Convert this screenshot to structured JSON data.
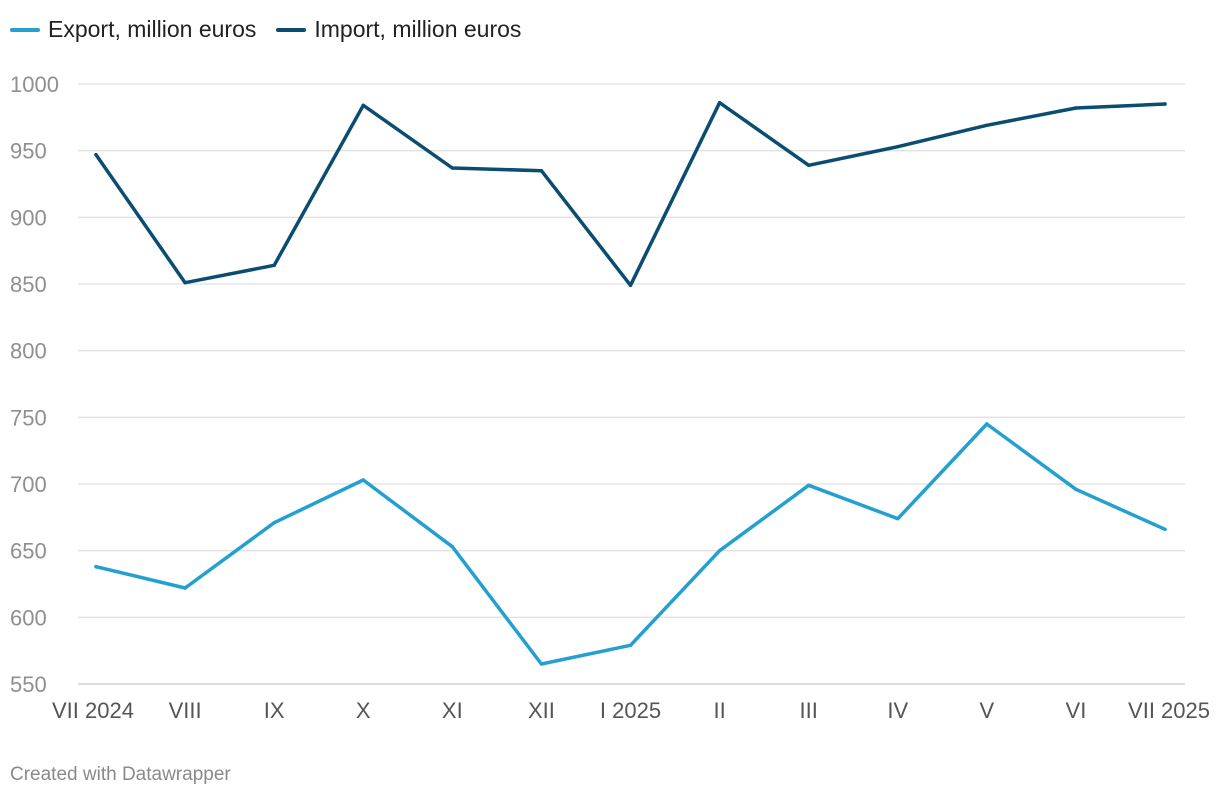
{
  "chart_data": {
    "type": "line",
    "categories": [
      "VII 2024",
      "VIII",
      "IX",
      "X",
      "XI",
      "XII",
      "I 2025",
      "II",
      "III",
      "IV",
      "V",
      "VI",
      "VII 2025"
    ],
    "series": [
      {
        "name": "Export, million euros",
        "color": "#23a0cf",
        "values": [
          638,
          622,
          671,
          703,
          653,
          565,
          579,
          650,
          699,
          674,
          745,
          696,
          666
        ]
      },
      {
        "name": "Import, million euros",
        "color": "#0b4d70",
        "values": [
          947,
          851,
          864,
          984,
          937,
          935,
          849,
          986,
          939,
          953,
          969,
          982,
          985
        ]
      }
    ],
    "yticks": [
      "1000",
      "950",
      "900",
      "850",
      "800",
      "750",
      "700",
      "650",
      "600",
      "550"
    ],
    "ylim": [
      550,
      1000
    ],
    "grid": true,
    "legend_position": "top-left"
  },
  "footer": {
    "credit": "Created with Datawrapper"
  }
}
